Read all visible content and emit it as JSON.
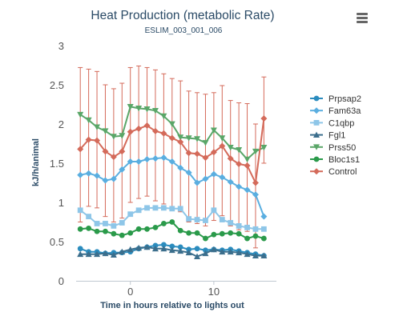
{
  "chart_data": {
    "type": "line",
    "title": "Heat Production (metabolic Rate)",
    "subtitle": "ESLIM_003_001_006",
    "xlabel": "Time in hours relative to lights out",
    "ylabel": "kJ/h/animal",
    "xlim": [
      -6.5,
      17.5
    ],
    "ylim": [
      0,
      3
    ],
    "yticks": [
      0,
      0.5,
      1,
      1.5,
      2,
      2.5,
      3
    ],
    "xticks": [
      0,
      10
    ],
    "grid": false,
    "legend_position": "right",
    "x": [
      -6,
      -5,
      -4,
      -3,
      -2,
      -1,
      0,
      1,
      2,
      3,
      4,
      5,
      6,
      7,
      8,
      9,
      10,
      11,
      12,
      13,
      14,
      15,
      16
    ],
    "series": [
      {
        "name": "Prpsap2",
        "color": "#2b8cbe",
        "marker": "circle",
        "values": [
          0.41,
          0.37,
          0.37,
          0.35,
          0.36,
          0.36,
          0.37,
          0.41,
          0.43,
          0.45,
          0.46,
          0.44,
          0.43,
          0.4,
          0.41,
          0.39,
          0.4,
          0.39,
          0.4,
          0.38,
          0.36,
          0.34,
          0.32
        ]
      },
      {
        "name": "Fam63a",
        "color": "#5aaee0",
        "marker": "diamond",
        "values": [
          1.35,
          1.37,
          1.34,
          1.28,
          1.3,
          1.42,
          1.52,
          1.52,
          1.55,
          1.56,
          1.57,
          1.52,
          1.44,
          1.38,
          1.25,
          1.3,
          1.36,
          1.32,
          1.26,
          1.2,
          1.16,
          1.1,
          0.82
        ]
      },
      {
        "name": "C1qbp",
        "color": "#8ec6e8",
        "marker": "square",
        "values": [
          0.9,
          0.82,
          0.73,
          0.73,
          0.7,
          0.74,
          0.85,
          0.9,
          0.93,
          0.93,
          0.93,
          0.92,
          0.92,
          0.79,
          0.78,
          0.77,
          0.9,
          0.78,
          0.74,
          0.7,
          0.68,
          0.66,
          0.66
        ]
      },
      {
        "name": "Fgl1",
        "color": "#3b6e8c",
        "marker": "triangle",
        "values": [
          0.34,
          0.34,
          0.34,
          0.35,
          0.33,
          0.37,
          0.4,
          0.42,
          0.43,
          0.41,
          0.41,
          0.39,
          0.38,
          0.36,
          0.31,
          0.35,
          0.4,
          0.37,
          0.37,
          0.36,
          0.34,
          0.32,
          0.32
        ]
      },
      {
        "name": "Prss50",
        "color": "#5aa668",
        "marker": "triangle-down",
        "values": [
          2.12,
          2.05,
          1.96,
          1.91,
          1.84,
          1.85,
          2.22,
          2.2,
          2.19,
          2.17,
          2.1,
          2.0,
          1.83,
          1.82,
          1.81,
          1.76,
          1.92,
          1.82,
          1.7,
          1.67,
          1.55,
          1.65,
          1.7
        ]
      },
      {
        "name": "Bloc1s1",
        "color": "#2a9a4a",
        "marker": "circle",
        "values": [
          0.66,
          0.67,
          0.63,
          0.63,
          0.6,
          0.58,
          0.61,
          0.66,
          0.66,
          0.68,
          0.73,
          0.75,
          0.64,
          0.61,
          0.61,
          0.54,
          0.59,
          0.6,
          0.61,
          0.6,
          0.54,
          0.57,
          0.54
        ]
      },
      {
        "name": "Control",
        "color": "#d46a5a",
        "marker": "diamond",
        "values": [
          1.68,
          1.8,
          1.79,
          1.65,
          1.58,
          1.65,
          1.9,
          1.94,
          1.98,
          1.91,
          1.88,
          1.82,
          1.77,
          1.63,
          1.62,
          1.57,
          1.64,
          1.72,
          1.56,
          1.49,
          1.47,
          1.25,
          2.07
        ],
        "error_low": [
          0.75,
          0.95,
          0.93,
          0.82,
          0.75,
          0.8,
          1.0,
          1.05,
          1.08,
          1.02,
          0.98,
          0.93,
          0.88,
          0.75,
          0.73,
          0.7,
          0.77,
          0.83,
          0.7,
          0.65,
          0.63,
          0.42,
          1.5
        ],
        "error_high": [
          2.72,
          2.7,
          2.67,
          2.5,
          2.45,
          2.52,
          2.72,
          2.74,
          2.72,
          2.69,
          2.64,
          2.58,
          2.55,
          2.42,
          2.4,
          2.38,
          2.4,
          2.49,
          2.3,
          2.27,
          2.26,
          2.0,
          2.6
        ]
      }
    ]
  }
}
